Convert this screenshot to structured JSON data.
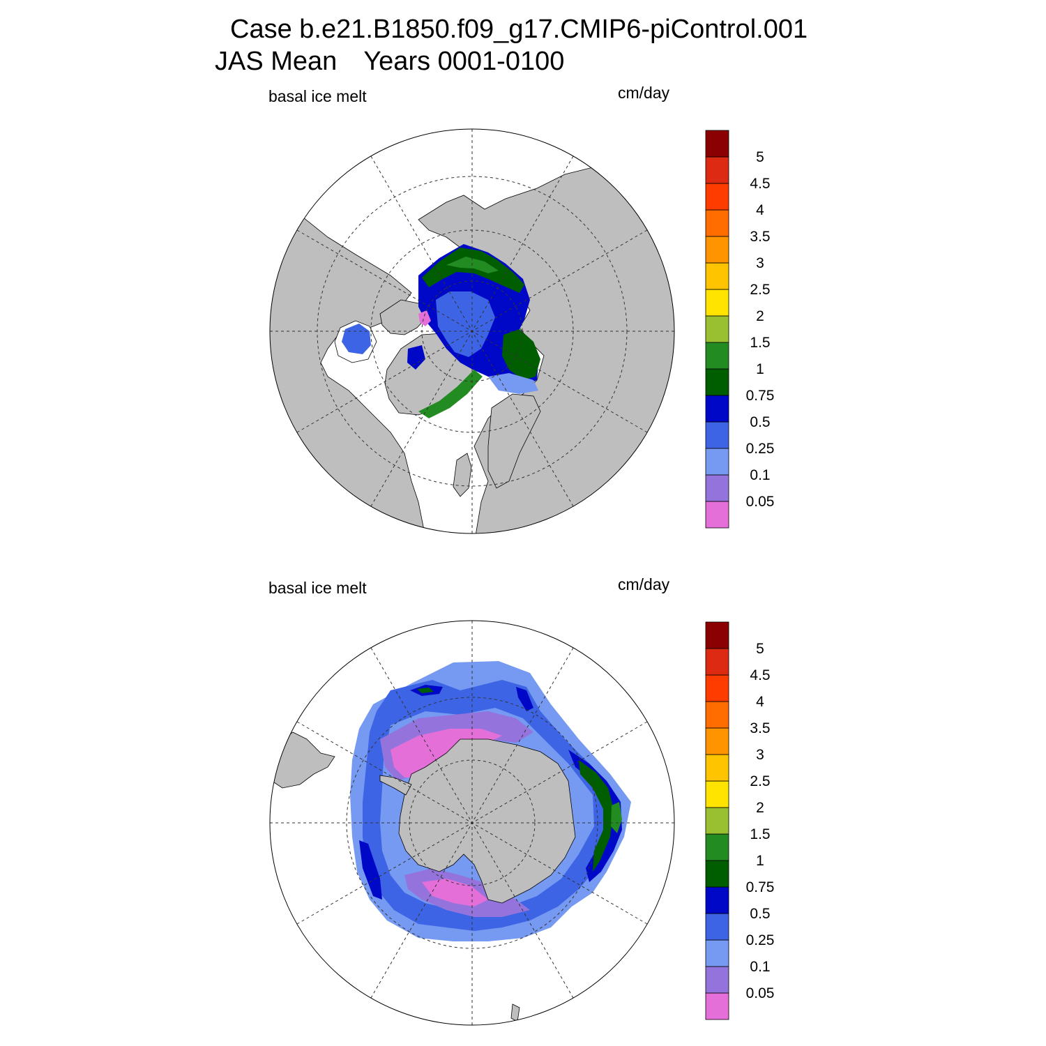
{
  "title": {
    "line1": "Case b.e21.B1850.f09_g17.CMIP6-piControl.001",
    "line2_period": "JAS Mean",
    "line2_years": "Years 0001-0100"
  },
  "panels": [
    {
      "id": "north",
      "variable_label": "basal ice melt",
      "units_label": "cm/day",
      "projection": "north-polar-stereographic"
    },
    {
      "id": "south",
      "variable_label": "basal ice melt",
      "units_label": "cm/day",
      "projection": "south-polar-stereographic"
    }
  ],
  "colorbar": {
    "levels": [
      "0.05",
      "0.1",
      "0.25",
      "0.5",
      "0.75",
      "1",
      "1.5",
      "2",
      "2.5",
      "3",
      "3.5",
      "4",
      "4.5",
      "5"
    ],
    "colors": [
      "#e46fd9",
      "#9474dc",
      "#7699f2",
      "#3c64e4",
      "#0008c8",
      "#005e00",
      "#228b22",
      "#99c030",
      "#ffe400",
      "#ffc400",
      "#ff9400",
      "#ff6c00",
      "#ff3c00",
      "#dd2a12",
      "#8b0000"
    ]
  },
  "colors": {
    "land": "#bebebe",
    "ocean": "#ffffff"
  }
}
